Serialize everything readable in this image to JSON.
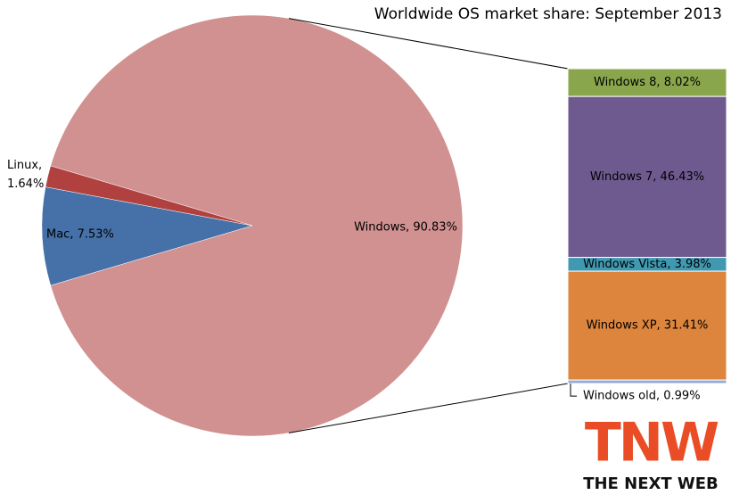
{
  "chart_data": {
    "type": "pie-of-bar",
    "title": "Worldwide OS market share: September 2013",
    "values": [
      90.83,
      7.53,
      1.64
    ],
    "value_labels": [
      "Windows, 90.83%",
      "Mac, 7.53%",
      "Linux, 1.64%"
    ],
    "colors": [
      "#d09190",
      "#4571a8",
      "#b0413e"
    ],
    "breakdown": {
      "values": [
        8.02,
        46.43,
        3.98,
        31.41,
        0.99
      ],
      "value_labels": [
        "Windows 8, 8.02%",
        "Windows 7, 46.43%",
        "Windows Vista, 3.98%",
        "Windows XP, 31.41%",
        "Windows old, 0.99%"
      ],
      "colors": [
        "#8aa64c",
        "#6f5a8f",
        "#4199b1",
        "#dd843d",
        "#94abd5"
      ]
    }
  },
  "logo": {
    "mark": "TNW",
    "name": "THE NEXT WEB"
  }
}
